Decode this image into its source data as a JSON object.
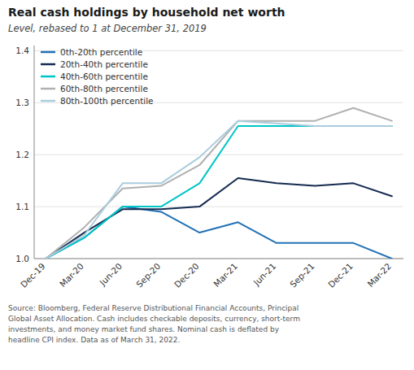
{
  "chart_data": {
    "type": "line",
    "title": "Real cash holdings by household net worth",
    "subtitle": "Level, rebased to 1 at December 31, 2019",
    "source": "Source: Bloomberg, Federal Reserve Distributional Financial Accounts, Principal\nGlobal Asset Allocation. Cash includes checkable deposits, currency, short-term\ninvestments, and money market fund shares. Nominal cash is deflated by\nheadline CPI index. Data as of March 31, 2022.",
    "categories": [
      "Dec-19",
      "Mar-20",
      "Jun-20",
      "Sep-20",
      "Dec-20",
      "Mar-21",
      "Jun-21",
      "Sep-21",
      "Dec-21",
      "Mar-22"
    ],
    "series": [
      {
        "name": "0th-20th percentile",
        "color": "#2171B5",
        "values": [
          1.0,
          1.04,
          1.1,
          1.09,
          1.05,
          1.07,
          1.03,
          1.03,
          1.03,
          1.0
        ]
      },
      {
        "name": "20th-40th percentile",
        "color": "#152B50",
        "values": [
          1.0,
          1.05,
          1.095,
          1.095,
          1.1,
          1.155,
          1.145,
          1.14,
          1.145,
          1.12
        ]
      },
      {
        "name": "40th-60th percentile",
        "color": "#00C5C5",
        "values": [
          1.0,
          1.04,
          1.1,
          1.1,
          1.145,
          1.255,
          1.255,
          1.255,
          1.255,
          1.255
        ]
      },
      {
        "name": "60th-80th percentile",
        "color": "#B0B0B0",
        "values": [
          1.0,
          1.06,
          1.135,
          1.14,
          1.18,
          1.265,
          1.265,
          1.265,
          1.29,
          1.265
        ]
      },
      {
        "name": "80th-100th percentile",
        "color": "#AACCDD",
        "values": [
          1.0,
          1.045,
          1.145,
          1.145,
          1.195,
          1.265,
          1.26,
          1.255,
          1.255,
          1.255
        ]
      }
    ],
    "ylim": [
      1.0,
      1.41
    ],
    "yticks": [
      {
        "value": 1.0,
        "label": "1.0"
      },
      1.1,
      1.2,
      1.3,
      1.4
    ],
    "grid": true,
    "legend": "upper left"
  }
}
